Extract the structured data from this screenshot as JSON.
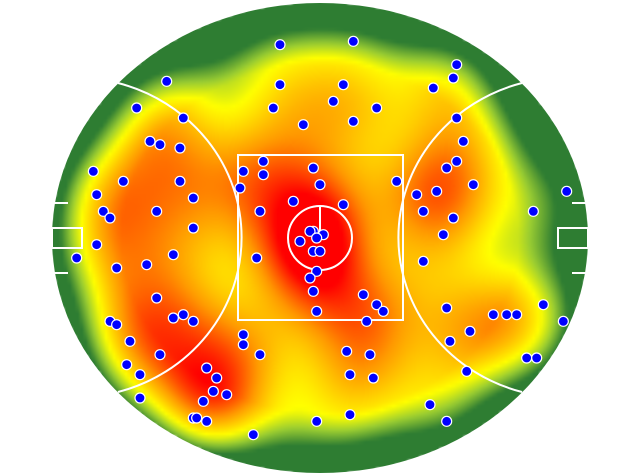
{
  "chart_data": {
    "type": "heatmap",
    "units": "m",
    "field_length": 162,
    "field_width": 142,
    "colorscale": [
      "#2e7d32",
      "#9acd32",
      "#ffff00",
      "#ff9900",
      "#ff0000"
    ],
    "point_color": "#0000ff",
    "points": [
      [
        -12,
        58
      ],
      [
        10,
        59
      ],
      [
        -46,
        47
      ],
      [
        -12,
        46
      ],
      [
        7,
        46
      ],
      [
        41,
        52
      ],
      [
        40,
        48
      ],
      [
        34,
        45
      ],
      [
        -55,
        39
      ],
      [
        -14,
        39
      ],
      [
        4,
        41
      ],
      [
        17,
        39
      ],
      [
        -41,
        36
      ],
      [
        -5,
        34
      ],
      [
        10,
        35
      ],
      [
        41,
        36
      ],
      [
        -51,
        29
      ],
      [
        -48,
        28
      ],
      [
        -42,
        27
      ],
      [
        43,
        29
      ],
      [
        -68,
        20
      ],
      [
        -59,
        17
      ],
      [
        -23,
        20
      ],
      [
        -17,
        23
      ],
      [
        -17,
        19
      ],
      [
        -2,
        21
      ],
      [
        0,
        16
      ],
      [
        23,
        17
      ],
      [
        41,
        23
      ],
      [
        38,
        21
      ],
      [
        46,
        16
      ],
      [
        -67,
        13
      ],
      [
        -42,
        17
      ],
      [
        -38,
        12
      ],
      [
        -24,
        15
      ],
      [
        -8,
        11
      ],
      [
        7,
        10
      ],
      [
        29,
        13
      ],
      [
        35,
        14
      ],
      [
        74,
        14
      ],
      [
        -65,
        8
      ],
      [
        -63,
        6
      ],
      [
        -49,
        8
      ],
      [
        -18,
        8
      ],
      [
        31,
        8
      ],
      [
        40,
        6
      ],
      [
        64,
        8
      ],
      [
        -38,
        3
      ],
      [
        -2,
        2
      ],
      [
        -3,
        2
      ],
      [
        1,
        1
      ],
      [
        -1,
        0
      ],
      [
        -6,
        -1
      ],
      [
        37,
        1
      ],
      [
        -67,
        -2
      ],
      [
        -73,
        -6
      ],
      [
        -44,
        -5
      ],
      [
        -2,
        -4
      ],
      [
        0,
        -4
      ],
      [
        -19,
        -6
      ],
      [
        31,
        -7
      ],
      [
        -61,
        -9
      ],
      [
        -52,
        -8
      ],
      [
        -1,
        -10
      ],
      [
        -3,
        -12
      ],
      [
        -2,
        -16
      ],
      [
        -49,
        -18
      ],
      [
        13,
        -17
      ],
      [
        17,
        -20
      ],
      [
        19,
        -22
      ],
      [
        -1,
        -22
      ],
      [
        38,
        -21
      ],
      [
        -41,
        -23
      ],
      [
        -44,
        -24
      ],
      [
        -38,
        -25
      ],
      [
        -63,
        -25
      ],
      [
        -61,
        -26
      ],
      [
        14,
        -25
      ],
      [
        52,
        -23
      ],
      [
        56,
        -23
      ],
      [
        59,
        -23
      ],
      [
        67,
        -20
      ],
      [
        73,
        -25
      ],
      [
        45,
        -28
      ],
      [
        -23,
        -29
      ],
      [
        -57,
        -31
      ],
      [
        -23,
        -32
      ],
      [
        39,
        -31
      ],
      [
        -48,
        -35
      ],
      [
        -18,
        -35
      ],
      [
        8,
        -34
      ],
      [
        15,
        -35
      ],
      [
        62,
        -36
      ],
      [
        65,
        -36
      ],
      [
        -58,
        -38
      ],
      [
        -34,
        -39
      ],
      [
        -54,
        -41
      ],
      [
        -31,
        -42
      ],
      [
        9,
        -41
      ],
      [
        16,
        -42
      ],
      [
        44,
        -40
      ],
      [
        -28,
        -47
      ],
      [
        -32,
        -46
      ],
      [
        -35,
        -49
      ],
      [
        -54,
        -48
      ],
      [
        9,
        -53
      ],
      [
        33,
        -50
      ],
      [
        -38,
        -54
      ],
      [
        -37,
        -54
      ],
      [
        -34,
        -55
      ],
      [
        -1,
        -55
      ],
      [
        38,
        -55
      ],
      [
        -20,
        -59
      ]
    ]
  }
}
